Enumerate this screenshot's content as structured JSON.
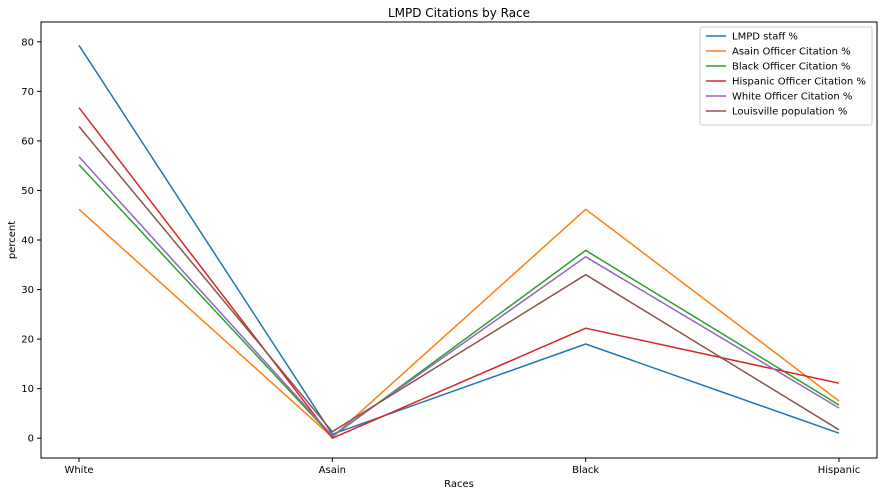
{
  "chart_data": {
    "type": "line",
    "title": "LMPD Citations by Race",
    "xlabel": "Races",
    "ylabel": "percent",
    "categories": [
      "White",
      "Asain",
      "Black",
      "Hispanic"
    ],
    "ylim": [
      -4,
      84
    ],
    "yticks": [
      0,
      10,
      20,
      30,
      40,
      50,
      60,
      70,
      80
    ],
    "grid": false,
    "legend_position": "top-right",
    "series": [
      {
        "name": "LMPD staff %",
        "color": "#1f77b4",
        "values": [
          79.3,
          0.8,
          19.0,
          1.0
        ]
      },
      {
        "name": "Asain Officer Citation %",
        "color": "#ff7f0e",
        "values": [
          46.2,
          0.2,
          46.2,
          7.5
        ]
      },
      {
        "name": "Black Officer Citation %",
        "color": "#2ca02c",
        "values": [
          55.2,
          0.3,
          37.9,
          6.7
        ]
      },
      {
        "name": "Hispanic Officer Citation %",
        "color": "#d62728",
        "values": [
          66.7,
          0.0,
          22.2,
          11.1
        ]
      },
      {
        "name": "White Officer Citation %",
        "color": "#9467bd",
        "values": [
          56.8,
          0.5,
          36.6,
          6.1
        ]
      },
      {
        "name": "Louisville population %",
        "color": "#8c564b",
        "values": [
          62.9,
          1.3,
          33.0,
          1.7
        ]
      }
    ]
  }
}
